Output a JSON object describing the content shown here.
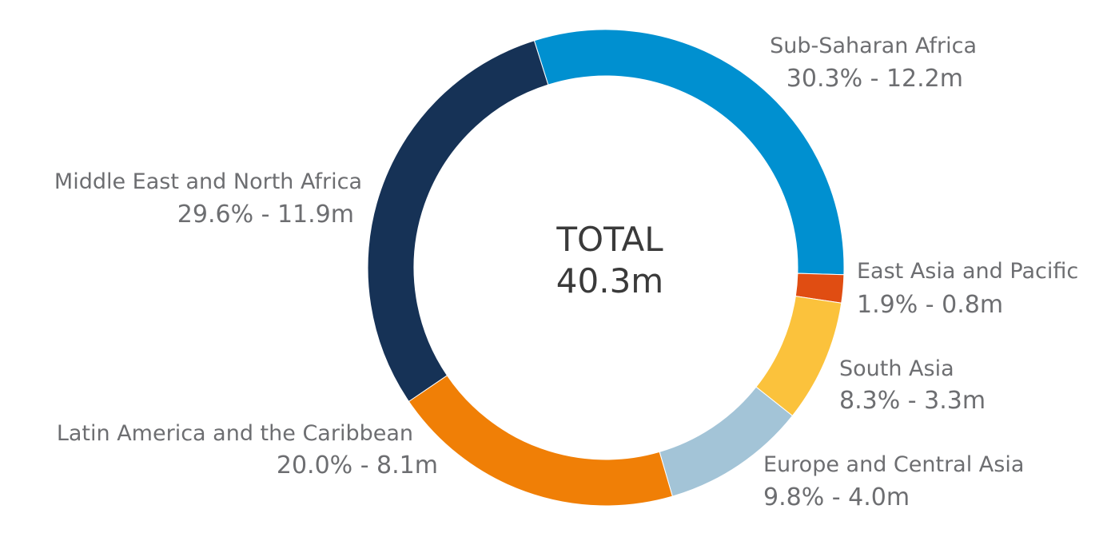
{
  "chart_data": {
    "type": "pie",
    "donut": true,
    "center": {
      "title": "TOTAL",
      "value": "40.3m"
    },
    "slices": [
      {
        "name": "Sub-Saharan Africa",
        "percent": 30.3,
        "amount": 12.2,
        "value_label": "30.3% - 12.2m",
        "color": "#0090d0"
      },
      {
        "name": "East Asia and Pacific",
        "percent": 1.9,
        "amount": 0.8,
        "value_label": "1.9% - 0.8m",
        "color": "#e04d12"
      },
      {
        "name": "South Asia",
        "percent": 8.3,
        "amount": 3.3,
        "value_label": "8.3% - 3.3m",
        "color": "#fbc23c"
      },
      {
        "name": "Europe and Central Asia",
        "percent": 9.8,
        "amount": 4.0,
        "value_label": "9.8% - 4.0m",
        "color": "#a3c4d7"
      },
      {
        "name": "Latin America and the Caribbean",
        "percent": 20.0,
        "amount": 8.1,
        "value_label": "20.0% - 8.1m",
        "color": "#f07f06"
      },
      {
        "name": "Middle East and North Africa",
        "percent": 29.6,
        "amount": 11.9,
        "value_label": "29.6% - 11.9m",
        "color": "#163256"
      }
    ]
  }
}
